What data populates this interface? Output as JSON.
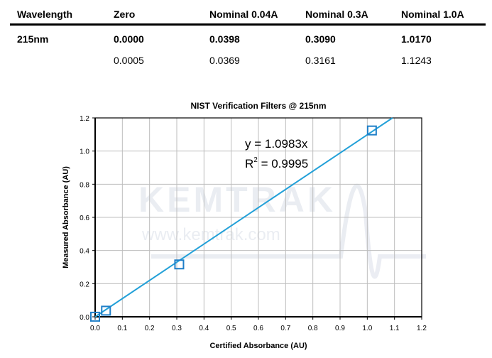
{
  "table": {
    "headers": [
      "Wavelength",
      "Zero",
      "Nominal 0.04A",
      "Nominal 0.3A",
      "Nominal 1.0A"
    ],
    "rows": [
      [
        "215nm",
        "0.0000",
        "0.0398",
        "0.3090",
        "1.0170"
      ],
      [
        "",
        "0.0005",
        "0.0369",
        "0.3161",
        "1.1243"
      ]
    ]
  },
  "chart_data": {
    "type": "scatter",
    "title": "NIST Verification Filters @ 215nm",
    "xlabel": "Certified Absorbance (AU)",
    "ylabel": "Measured Absorbance (AU)",
    "xlim": [
      0,
      1.2
    ],
    "ylim": [
      0,
      1.2
    ],
    "xticks": [
      "0.0",
      "0.1",
      "0.2",
      "0.3",
      "0.4",
      "0.5",
      "0.6",
      "0.7",
      "0.8",
      "0.9",
      "1.0",
      "1.1",
      "1.2"
    ],
    "yticks": [
      "0.0",
      "0.2",
      "0.4",
      "0.6",
      "0.8",
      "1.0",
      "1.2"
    ],
    "grid": true,
    "points": [
      {
        "x": 0.0,
        "y": 0.0005
      },
      {
        "x": 0.0398,
        "y": 0.0369
      },
      {
        "x": 0.309,
        "y": 0.3161
      },
      {
        "x": 1.017,
        "y": 1.1243
      }
    ],
    "trendline": {
      "slope": 1.0983,
      "intercept": 0
    },
    "equation": "y = 1.0983x",
    "r2_prefix": "R",
    "r2_exp": "2",
    "r2_value": " = 0.9995",
    "marker_color": "#1f7fc8",
    "line_color": "#22a0d8",
    "watermark": {
      "logo": "KEMTRAK",
      "url": "www.kemtrak.com"
    }
  }
}
